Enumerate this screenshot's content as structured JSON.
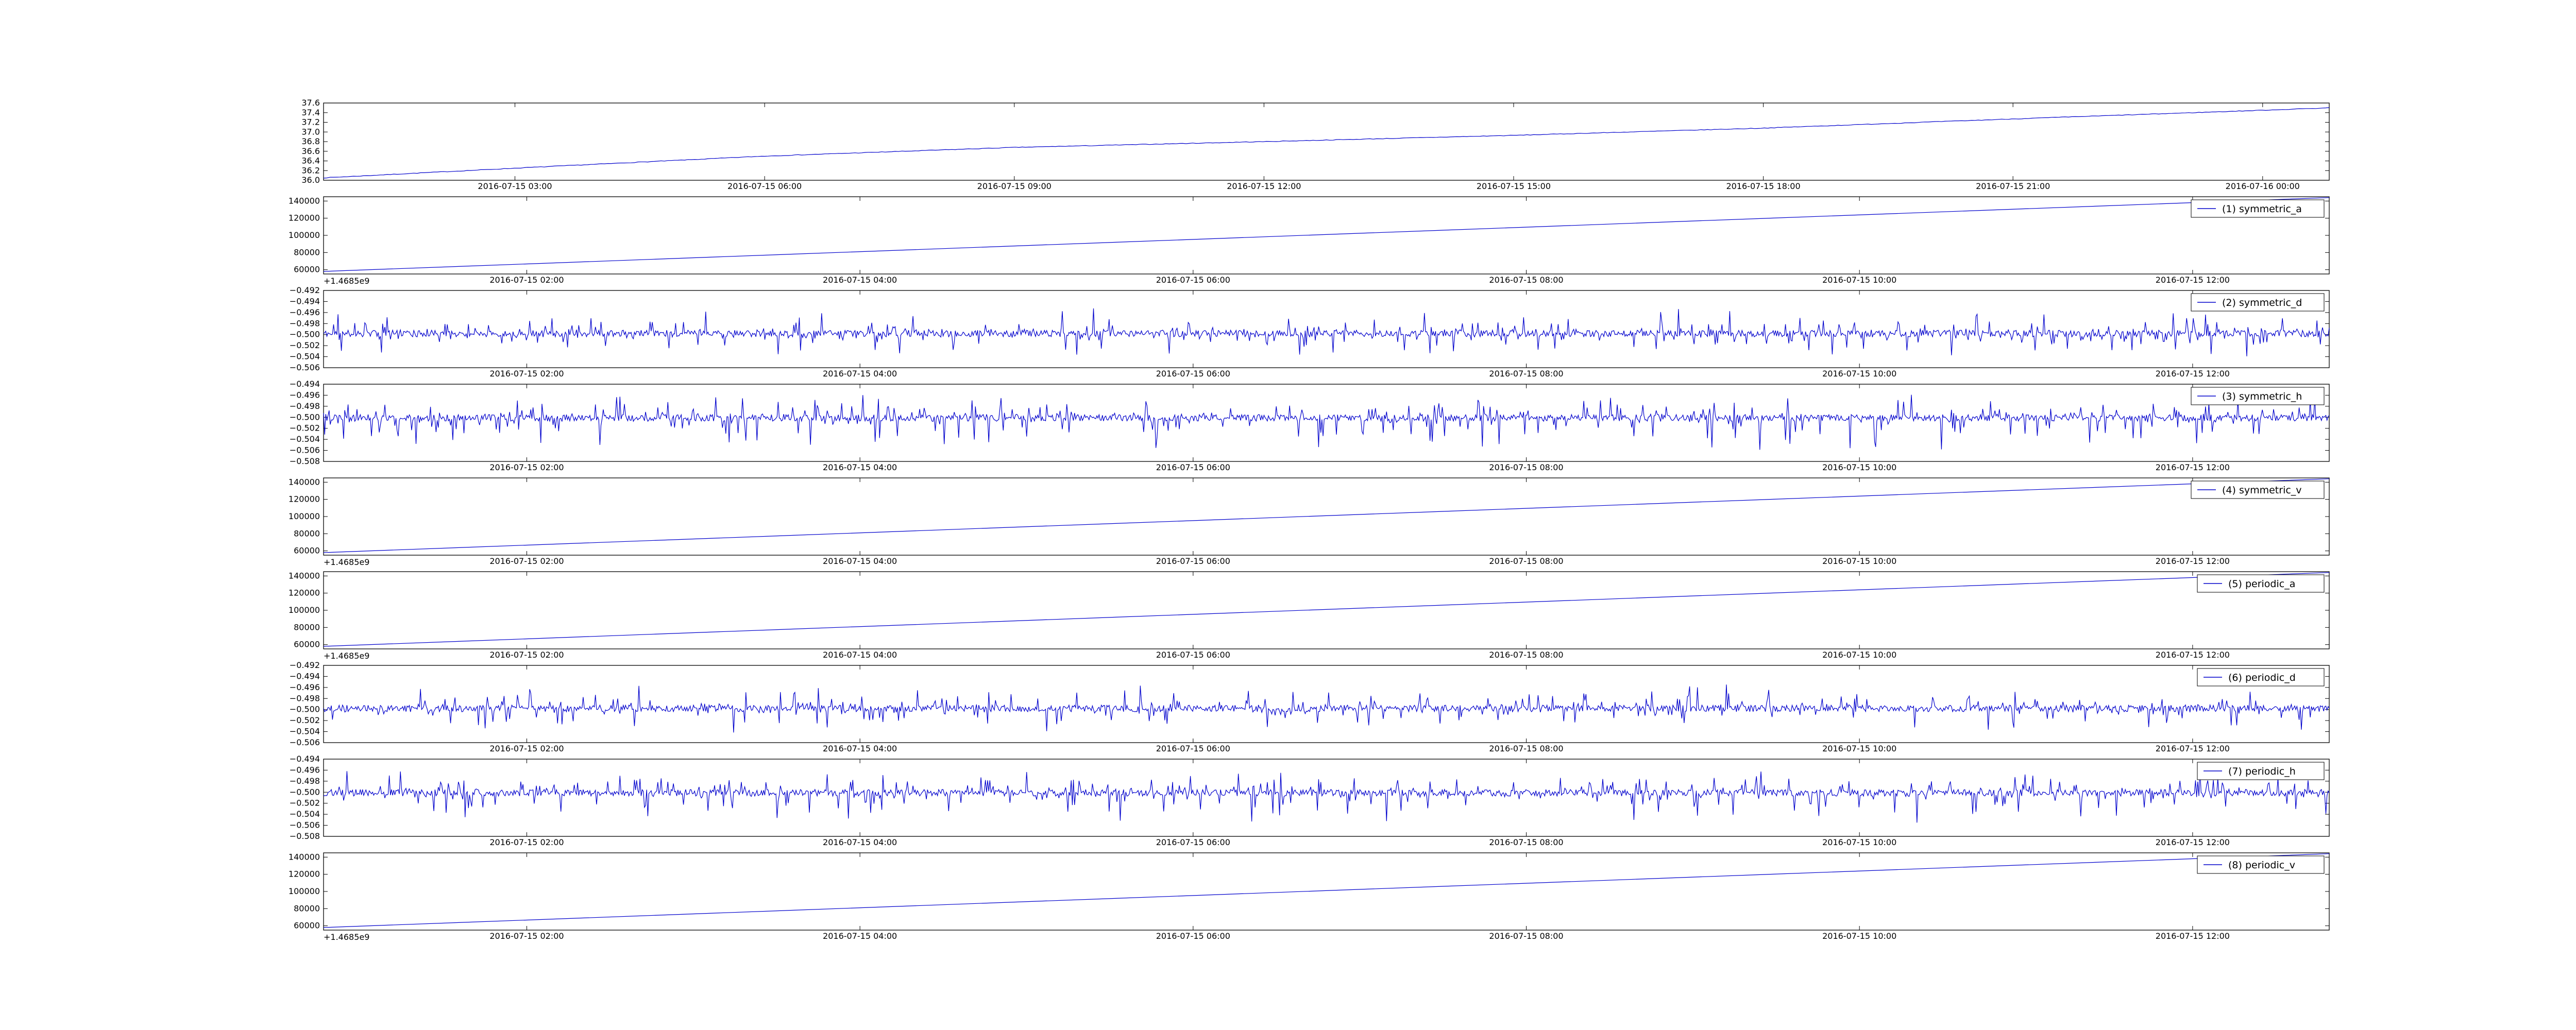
{
  "colors": {
    "series": "#0000cc",
    "axes": "#000000",
    "background": "#ffffff"
  },
  "chart_data": [
    {
      "type": "line",
      "title": "",
      "x_offset_label": "",
      "ylim": [
        36.0,
        37.6
      ],
      "y_ticks": [
        "36.0",
        "36.2",
        "36.4",
        "36.6",
        "36.8",
        "37.0",
        "37.2",
        "37.4",
        "37.6"
      ],
      "x_ticks": [
        "2016-07-15 03:00",
        "2016-07-15 06:00",
        "2016-07-15 09:00",
        "2016-07-15 12:00",
        "2016-07-15 15:00",
        "2016-07-15 18:00",
        "2016-07-15 21:00",
        "2016-07-16 00:00"
      ],
      "x_tick_positions_hours": [
        3,
        6,
        9,
        12,
        15,
        18,
        21,
        24
      ],
      "x_range_hours": [
        0.7,
        24.8
      ],
      "series": [
        {
          "kind": "smooth",
          "values_at_hours": [
            [
              0.7,
              36.05
            ],
            [
              3,
              36.25
            ],
            [
              6,
              36.5
            ],
            [
              9,
              36.68
            ],
            [
              12,
              36.8
            ],
            [
              15,
              36.93
            ],
            [
              18,
              37.08
            ],
            [
              21,
              37.27
            ],
            [
              24,
              37.45
            ],
            [
              24.8,
              37.5
            ]
          ]
        }
      ]
    },
    {
      "type": "line",
      "x_offset_label": "+1.4685e9",
      "ylim": [
        55000,
        145000
      ],
      "y_ticks": [
        "60000",
        "80000",
        "100000",
        "120000",
        "140000"
      ],
      "x_ticks": [
        "2016-07-15 02:00",
        "2016-07-15 04:00",
        "2016-07-15 06:00",
        "2016-07-15 08:00",
        "2016-07-15 10:00",
        "2016-07-15 12:00"
      ],
      "x_tick_positions_hours": [
        2,
        4,
        6,
        8,
        10,
        12
      ],
      "x_range_hours": [
        0.78,
        12.82
      ],
      "legend": "(1) symmetric_a",
      "series": [
        {
          "kind": "linear",
          "start": 58000,
          "end": 144000
        }
      ]
    },
    {
      "type": "line",
      "x_offset_label": "",
      "ylim": [
        -0.506,
        -0.492
      ],
      "y_ticks": [
        "−0.506",
        "−0.504",
        "−0.502",
        "−0.500",
        "−0.498",
        "−0.496",
        "−0.494",
        "−0.492"
      ],
      "x_ticks": [
        "2016-07-15 02:00",
        "2016-07-15 04:00",
        "2016-07-15 06:00",
        "2016-07-15 08:00",
        "2016-07-15 10:00",
        "2016-07-15 12:00"
      ],
      "x_tick_positions_hours": [
        2,
        4,
        6,
        8,
        10,
        12
      ],
      "x_range_hours": [
        0.78,
        12.82
      ],
      "legend": "(2) symmetric_d",
      "series": [
        {
          "kind": "noise",
          "center": -0.4998,
          "max_up": 0.0048,
          "max_down": 0.0045,
          "seed": 11
        }
      ]
    },
    {
      "type": "line",
      "x_offset_label": "",
      "ylim": [
        -0.508,
        -0.494
      ],
      "y_ticks": [
        "−0.508",
        "−0.506",
        "−0.504",
        "−0.502",
        "−0.500",
        "−0.498",
        "−0.496",
        "−0.494"
      ],
      "x_ticks": [
        "2016-07-15 02:00",
        "2016-07-15 04:00",
        "2016-07-15 06:00",
        "2016-07-15 08:00",
        "2016-07-15 10:00",
        "2016-07-15 12:00"
      ],
      "x_tick_positions_hours": [
        2,
        4,
        6,
        8,
        10,
        12
      ],
      "x_range_hours": [
        0.78,
        12.82
      ],
      "legend": "(3) symmetric_h",
      "series": [
        {
          "kind": "noise",
          "center": -0.5001,
          "max_up": 0.0045,
          "max_down": 0.0062,
          "seed": 23
        }
      ]
    },
    {
      "type": "line",
      "x_offset_label": "+1.4685e9",
      "ylim": [
        55000,
        145000
      ],
      "y_ticks": [
        "60000",
        "80000",
        "100000",
        "120000",
        "140000"
      ],
      "x_ticks": [
        "2016-07-15 02:00",
        "2016-07-15 04:00",
        "2016-07-15 06:00",
        "2016-07-15 08:00",
        "2016-07-15 10:00",
        "2016-07-15 12:00"
      ],
      "x_tick_positions_hours": [
        2,
        4,
        6,
        8,
        10,
        12
      ],
      "x_range_hours": [
        0.78,
        12.82
      ],
      "legend": "(4) symmetric_v",
      "series": [
        {
          "kind": "linear",
          "start": 58000,
          "end": 144000
        }
      ]
    },
    {
      "type": "line",
      "x_offset_label": "+1.4685e9",
      "ylim": [
        55000,
        145000
      ],
      "y_ticks": [
        "60000",
        "80000",
        "100000",
        "120000",
        "140000"
      ],
      "x_ticks": [
        "2016-07-15 02:00",
        "2016-07-15 04:00",
        "2016-07-15 06:00",
        "2016-07-15 08:00",
        "2016-07-15 10:00",
        "2016-07-15 12:00"
      ],
      "x_tick_positions_hours": [
        2,
        4,
        6,
        8,
        10,
        12
      ],
      "x_range_hours": [
        0.78,
        12.82
      ],
      "legend": "(5) periodic_a",
      "series": [
        {
          "kind": "linear",
          "start": 58000,
          "end": 144000
        }
      ]
    },
    {
      "type": "line",
      "x_offset_label": "",
      "ylim": [
        -0.506,
        -0.492
      ],
      "y_ticks": [
        "−0.506",
        "−0.504",
        "−0.502",
        "−0.500",
        "−0.498",
        "−0.496",
        "−0.494",
        "−0.492"
      ],
      "x_ticks": [
        "2016-07-15 02:00",
        "2016-07-15 04:00",
        "2016-07-15 06:00",
        "2016-07-15 08:00",
        "2016-07-15 10:00",
        "2016-07-15 12:00"
      ],
      "x_tick_positions_hours": [
        2,
        4,
        6,
        8,
        10,
        12
      ],
      "x_range_hours": [
        0.78,
        12.82
      ],
      "legend": "(6) periodic_d",
      "series": [
        {
          "kind": "noise",
          "center": -0.4998,
          "max_up": 0.0048,
          "max_down": 0.0045,
          "seed": 37
        }
      ]
    },
    {
      "type": "line",
      "x_offset_label": "",
      "ylim": [
        -0.508,
        -0.494
      ],
      "y_ticks": [
        "−0.508",
        "−0.506",
        "−0.504",
        "−0.502",
        "−0.500",
        "−0.498",
        "−0.496",
        "−0.494"
      ],
      "x_ticks": [
        "2016-07-15 02:00",
        "2016-07-15 04:00",
        "2016-07-15 06:00",
        "2016-07-15 08:00",
        "2016-07-15 10:00",
        "2016-07-15 12:00"
      ],
      "x_tick_positions_hours": [
        2,
        4,
        6,
        8,
        10,
        12
      ],
      "x_range_hours": [
        0.78,
        12.82
      ],
      "legend": "(7) periodic_h",
      "series": [
        {
          "kind": "noise",
          "center": -0.5001,
          "max_up": 0.0045,
          "max_down": 0.0062,
          "seed": 53
        }
      ]
    },
    {
      "type": "line",
      "x_offset_label": "+1.4685e9",
      "ylim": [
        55000,
        145000
      ],
      "y_ticks": [
        "60000",
        "80000",
        "100000",
        "120000",
        "140000"
      ],
      "x_ticks": [
        "2016-07-15 02:00",
        "2016-07-15 04:00",
        "2016-07-15 06:00",
        "2016-07-15 08:00",
        "2016-07-15 10:00",
        "2016-07-15 12:00"
      ],
      "x_tick_positions_hours": [
        2,
        4,
        6,
        8,
        10,
        12
      ],
      "x_range_hours": [
        0.78,
        12.82
      ],
      "legend": "(8) periodic_v",
      "series": [
        {
          "kind": "linear",
          "start": 58000,
          "end": 144000
        }
      ]
    }
  ]
}
